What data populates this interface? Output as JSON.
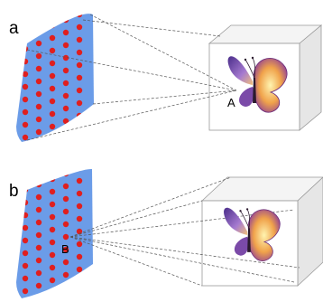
{
  "panels": [
    {
      "label": "a",
      "point_label": "A"
    },
    {
      "label": "b",
      "point_label": "B"
    }
  ],
  "colors": {
    "screen_fill": "#6b9ce8",
    "dot": "#e01f1f",
    "box_front": "#ffffff",
    "box_side": "#e6e6e6",
    "box_top": "#f4f4f4",
    "box_edge": "#9a9a9a",
    "ray": "#555555"
  },
  "dot_grid": {
    "rows": 9,
    "cols": 5
  }
}
